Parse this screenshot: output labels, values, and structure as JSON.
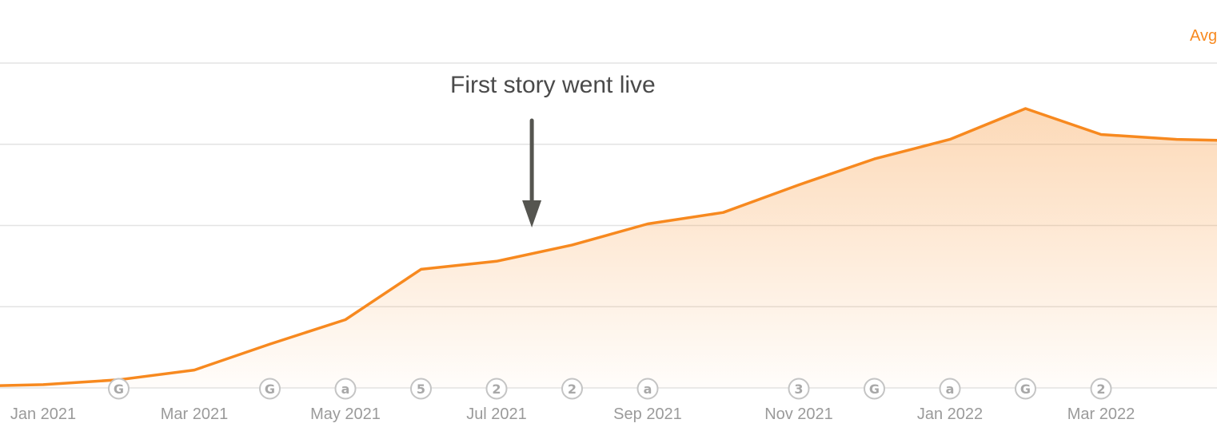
{
  "legend": {
    "label": "Avg",
    "color": "#f7891f"
  },
  "annotation": {
    "text": "First story went live",
    "x": "Jul 15 2021"
  },
  "chart_data": {
    "type": "area",
    "title": "",
    "xlabel": "",
    "ylabel": "",
    "grid": true,
    "x_ticks": [
      "Jan 2021",
      "Mar 2021",
      "May 2021",
      "Jul 2021",
      "Sep 2021",
      "Nov 2021",
      "Jan 2022",
      "Mar 2022"
    ],
    "ylim": [
      0,
      100
    ],
    "series": [
      {
        "name": "Avg",
        "color": "#f7891f",
        "x": [
          "Dec 2020",
          "Jan 2021",
          "Feb 2021",
          "Mar 2021",
          "Apr 2021",
          "May 2021",
          "Jun 2021",
          "Jul 2021",
          "Aug 2021",
          "Sep 2021",
          "Oct 2021",
          "Nov 2021",
          "Dec 2021",
          "Jan 2022",
          "Feb 2022",
          "Mar 2022",
          "Apr 2022",
          "May 2022"
        ],
        "values": [
          0.5,
          1.0,
          2.5,
          5.5,
          13.5,
          21.0,
          36.5,
          39.0,
          44.0,
          50.5,
          54.0,
          62.5,
          70.5,
          76.5,
          86.0,
          78.0,
          76.5,
          76.0
        ]
      }
    ],
    "markers": [
      {
        "x": "Feb 2021",
        "label": "G"
      },
      {
        "x": "Apr 2021",
        "label": "G"
      },
      {
        "x": "May 2021",
        "label": "a"
      },
      {
        "x": "Jun 2021",
        "label": "5"
      },
      {
        "x": "Jul 2021",
        "label": "2"
      },
      {
        "x": "Aug 2021",
        "label": "2"
      },
      {
        "x": "Sep 2021",
        "label": "a"
      },
      {
        "x": "Nov 2021",
        "label": "3"
      },
      {
        "x": "Dec 2021",
        "label": "G"
      },
      {
        "x": "Jan 2022",
        "label": "a"
      },
      {
        "x": "Feb 2022",
        "label": "G"
      },
      {
        "x": "Mar 2022",
        "label": "2"
      }
    ]
  }
}
